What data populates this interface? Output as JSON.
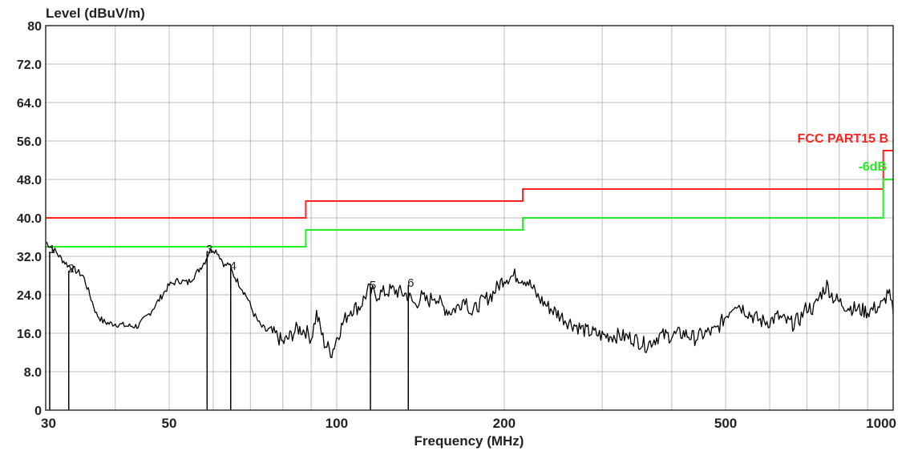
{
  "chart_data": {
    "type": "line",
    "ylabel": "Level (dBuV/m)",
    "xlabel": "Frequency (MHz)",
    "x_scale": "log",
    "xlim": [
      30,
      1000
    ],
    "ylim": [
      0,
      80
    ],
    "grid": true,
    "y_ticks": [
      {
        "value": 0,
        "label": "0"
      },
      {
        "value": 8,
        "label": "8.0"
      },
      {
        "value": 16,
        "label": "16.0"
      },
      {
        "value": 24,
        "label": "24.0"
      },
      {
        "value": 32,
        "label": "32.0"
      },
      {
        "value": 40,
        "label": "40.0"
      },
      {
        "value": 48,
        "label": "48.0"
      },
      {
        "value": 56,
        "label": "56.0"
      },
      {
        "value": 64,
        "label": "64.0"
      },
      {
        "value": 72,
        "label": "72.0"
      },
      {
        "value": 80,
        "label": "80"
      }
    ],
    "x_tick_labels": [
      {
        "value": 30,
        "label": "30"
      },
      {
        "value": 50,
        "label": "50"
      },
      {
        "value": 100,
        "label": "100"
      },
      {
        "value": 200,
        "label": "200"
      },
      {
        "value": 500,
        "label": "500"
      },
      {
        "value": 1000,
        "label": "1000"
      }
    ],
    "x_gridlines": [
      40,
      50,
      60,
      70,
      80,
      90,
      100,
      200,
      300,
      400,
      500,
      600,
      700,
      800,
      900
    ],
    "limit_lines": [
      {
        "name": "FCC PART15 B",
        "color": "#ff2222",
        "points": [
          [
            30,
            40
          ],
          [
            88,
            40
          ],
          [
            88,
            43.5
          ],
          [
            216,
            43.5
          ],
          [
            216,
            46
          ],
          [
            960,
            46
          ],
          [
            960,
            54
          ],
          [
            1000,
            54
          ]
        ]
      },
      {
        "name": "-6dB",
        "color": "#22ee22",
        "points": [
          [
            30,
            34
          ],
          [
            88,
            34
          ],
          [
            88,
            37.5
          ],
          [
            216,
            37.5
          ],
          [
            216,
            40
          ],
          [
            960,
            40
          ],
          [
            960,
            48
          ],
          [
            1000,
            48
          ]
        ]
      }
    ],
    "measurement_series": {
      "color": "#000000",
      "x": [
        30,
        31,
        32,
        33,
        34,
        35,
        36,
        37,
        38,
        39,
        40,
        42,
        44,
        46,
        48,
        50,
        52,
        54,
        56,
        58,
        59,
        60,
        61,
        62,
        63,
        64,
        65,
        67,
        69,
        71,
        73,
        75,
        78,
        80,
        82,
        85,
        88,
        90,
        92,
        95,
        98,
        100,
        103,
        106,
        110,
        114,
        118,
        122,
        126,
        130,
        134,
        138,
        142,
        146,
        150,
        155,
        160,
        165,
        170,
        175,
        180,
        190,
        200,
        210,
        220,
        230,
        240,
        250,
        260,
        270,
        280,
        290,
        300,
        320,
        340,
        360,
        380,
        400,
        420,
        440,
        460,
        480,
        500,
        520,
        540,
        560,
        580,
        600,
        620,
        640,
        660,
        680,
        700,
        720,
        740,
        760,
        780,
        800,
        830,
        860,
        900,
        940,
        960,
        980,
        1000
      ],
      "y": [
        35,
        33.5,
        31.5,
        30,
        29,
        28,
        24,
        20,
        18.5,
        18,
        18,
        17.5,
        17.5,
        20,
        23,
        26,
        27,
        26.5,
        28.5,
        31,
        33,
        33.5,
        33,
        31.5,
        30,
        30.5,
        28.5,
        26,
        23.5,
        20,
        17.5,
        16.5,
        15.5,
        14,
        15,
        17,
        16.5,
        15,
        20,
        14,
        12,
        15,
        18.5,
        21,
        21.5,
        25,
        24,
        24.5,
        25,
        24.5,
        24,
        22,
        23.5,
        22.5,
        24,
        21.5,
        20.5,
        21.5,
        23.5,
        20,
        22,
        24,
        27.5,
        28,
        27,
        23.5,
        21.5,
        20,
        18.5,
        17.5,
        16.5,
        16,
        15.5,
        15.5,
        15,
        13.5,
        15.5,
        15.5,
        16,
        15,
        16,
        16.5,
        19.5,
        22.5,
        21,
        19.5,
        18.5,
        18.5,
        19.5,
        18.5,
        18,
        19,
        21.5,
        21,
        24,
        26,
        23.5,
        22.5,
        21.5,
        21,
        20.5,
        21.5,
        22,
        25,
        20
      ]
    },
    "markers": [
      {
        "label": "1",
        "x": 30.5,
        "y": 33
      },
      {
        "label": "2",
        "x": 33,
        "y": 29
      },
      {
        "label": "3",
        "x": 58.5,
        "y": 33
      },
      {
        "label": "4",
        "x": 64.5,
        "y": 29.5
      },
      {
        "label": "5",
        "x": 115,
        "y": 25.5
      },
      {
        "label": "6",
        "x": 134.5,
        "y": 26
      }
    ]
  }
}
